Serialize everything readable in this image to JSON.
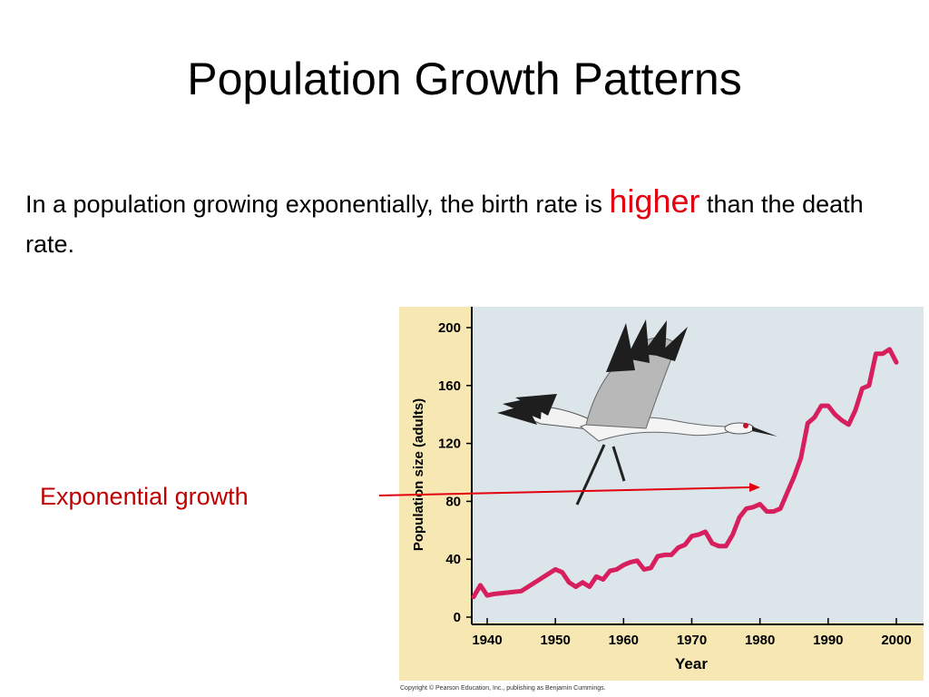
{
  "slide": {
    "title": "Population Growth Patterns",
    "body_before": "In a population growing exponentially, the birth rate is ",
    "body_highlight": "higher",
    "body_after": " than the death rate.",
    "annotation_label": "Exponential growth",
    "copyright": "Copyright © Pearson Education, Inc., publishing as Benjamin Cummings."
  },
  "colors": {
    "plot_bg": "#dce5ea",
    "frame_bg": "#f6e7b3",
    "line": "#d61f5c",
    "arrow": "#e3000f",
    "highlight": "#e3000f",
    "label": "#c00000"
  },
  "icons": {
    "bird": "whooping-crane-illustration"
  },
  "chart_data": {
    "type": "line",
    "title": "",
    "xlabel": "Year",
    "ylabel": "Population size (adults)",
    "xlim": [
      1938,
      2003
    ],
    "ylim": [
      0,
      210
    ],
    "xticks": [
      1940,
      1950,
      1960,
      1970,
      1980,
      1990,
      2000
    ],
    "yticks": [
      0,
      40,
      80,
      120,
      160,
      200
    ],
    "grid": false,
    "series": [
      {
        "x": [
          1938,
          1939,
          1940,
          1941,
          1945,
          1950,
          1951,
          1952,
          1953,
          1954,
          1955,
          1956,
          1957,
          1958,
          1959,
          1960,
          1961,
          1962,
          1963,
          1964,
          1965,
          1966,
          1967,
          1968,
          1969,
          1970,
          1971,
          1972,
          1973,
          1974,
          1975,
          1976,
          1977,
          1978,
          1979,
          1980,
          1981,
          1982,
          1983,
          1984,
          1985,
          1986,
          1987,
          1988,
          1989,
          1990,
          1991,
          1992,
          1993,
          1994,
          1995,
          1996,
          1997,
          1998,
          1999,
          2000
        ],
        "y": [
          14,
          22,
          15,
          16,
          18,
          33,
          31,
          24,
          21,
          24,
          21,
          28,
          26,
          32,
          33,
          36,
          38,
          39,
          33,
          34,
          42,
          43,
          43,
          48,
          50,
          56,
          57,
          59,
          51,
          49,
          49,
          57,
          69,
          75,
          76,
          78,
          73,
          73,
          75,
          86,
          97,
          110,
          134,
          138,
          146,
          146,
          140,
          136,
          133,
          143,
          158,
          160,
          182,
          182,
          185,
          176
        ]
      }
    ],
    "arrow": {
      "from": [
        1926,
        80
      ],
      "to": [
        1980,
        86
      ]
    }
  }
}
